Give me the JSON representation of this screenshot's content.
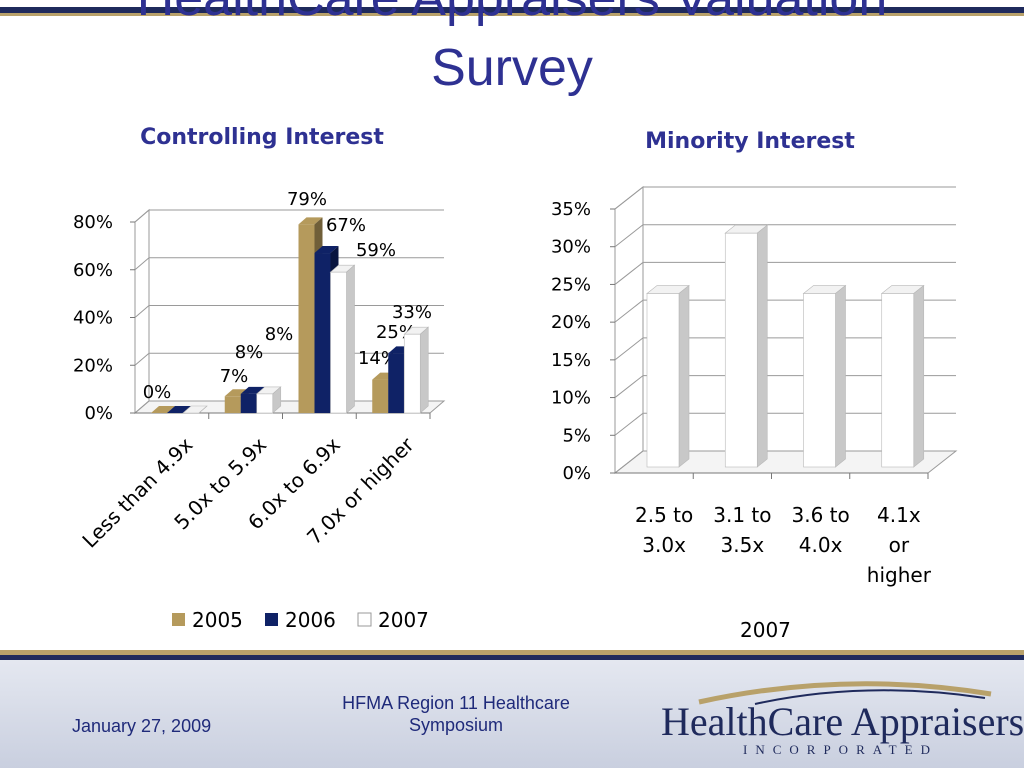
{
  "slide": {
    "title_line1": "HealthCare Appraisers Valuation",
    "title_line2": "Survey"
  },
  "footer": {
    "date": "January 27, 2009",
    "event_line1": "HFMA Region 11 Healthcare",
    "event_line2": "Symposium",
    "logo_name": "HealthCare Appraisers",
    "logo_tagline": "INCORPORATED"
  },
  "colors": {
    "2005": "#b59a5c",
    "2006": "#0f2266",
    "2007": "#ffffff",
    "title": "#2e3192"
  },
  "chart_data": [
    {
      "type": "bar",
      "title": "Controlling Interest",
      "categories": [
        "Less than 4.9x",
        "5.0x to 5.9x",
        "6.0x to 6.9x",
        "7.0x or higher"
      ],
      "series": [
        {
          "name": "2005",
          "values": [
            0,
            7,
            79,
            14
          ]
        },
        {
          "name": "2006",
          "values": [
            0,
            8,
            67,
            25
          ]
        },
        {
          "name": "2007",
          "values": [
            0,
            8,
            59,
            33
          ]
        }
      ],
      "data_labels": [
        "0%",
        "7%",
        "8%",
        "8%",
        "79%",
        "67%",
        "59%",
        "14%",
        "25%",
        "33%"
      ],
      "y_ticks": [
        "0%",
        "20%",
        "40%",
        "60%",
        "80%"
      ],
      "ylim": [
        0,
        80
      ],
      "grid": true,
      "legend": "bottom"
    },
    {
      "type": "bar",
      "title": "Minority Interest",
      "categories": [
        [
          "2.5 to",
          "3.0x"
        ],
        [
          "3.1 to",
          "3.5x"
        ],
        [
          "3.6 to",
          "4.0x"
        ],
        [
          "4.1x",
          "or",
          "higher"
        ]
      ],
      "series": [
        {
          "name": "2007",
          "values": [
            23,
            31,
            23,
            23
          ]
        }
      ],
      "y_ticks": [
        "0%",
        "5%",
        "10%",
        "15%",
        "20%",
        "25%",
        "30%",
        "35%"
      ],
      "ylim": [
        0,
        35
      ],
      "grid": true,
      "legend": "bottom"
    }
  ]
}
